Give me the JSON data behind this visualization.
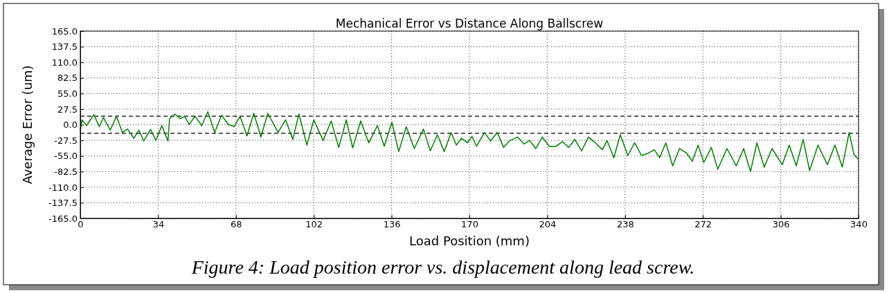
{
  "chart_data": {
    "type": "line",
    "title": "Mechanical Error vs Distance Along Ballscrew",
    "xlabel": "Load Position (mm)",
    "ylabel": "Average Error (um)",
    "annotations": [
      "Figure 4: Load position error vs. displacement along lead screw."
    ],
    "xlim": [
      0,
      340
    ],
    "xticks": [
      0,
      34,
      68,
      102,
      136,
      170,
      204,
      238,
      272,
      306,
      340
    ],
    "ylim": [
      -165,
      165
    ],
    "yticks": [
      {
        "value": -165,
        "label": "-165.0"
      },
      {
        "value": -137.5,
        "label": "-137.5"
      },
      {
        "value": -110,
        "label": "-110.0"
      },
      {
        "value": -82.5,
        "label": "-82.5"
      },
      {
        "value": -55,
        "label": "-55.0"
      },
      {
        "value": -27.5,
        "label": "-27.5"
      },
      {
        "value": 0,
        "label": "0.0"
      },
      {
        "value": 27.5,
        "label": "27.5"
      },
      {
        "value": 55,
        "label": "55.0"
      },
      {
        "value": 82.5,
        "label": "82.5"
      },
      {
        "value": 110,
        "label": "110.0"
      },
      {
        "value": 137.5,
        "label": "137.5"
      },
      {
        "value": 165,
        "label": "165.0"
      }
    ],
    "grid": true,
    "line_style": "solid",
    "ref_lines": [
      {
        "axis": "y",
        "value": 15,
        "color": "#000000",
        "line_style": "dashed"
      },
      {
        "axis": "y",
        "value": -15,
        "color": "#000000",
        "line_style": "dashed"
      }
    ],
    "series": [
      {
        "color": "#007f00",
        "x": [
          0,
          0.7,
          2.7,
          5.9,
          8.3,
          10.1,
          13.1,
          15.8,
          18.4,
          20.6,
          23.4,
          25.6,
          27.7,
          30.7,
          33,
          35.6,
          38.3,
          39,
          41.3,
          43.6,
          45.6,
          47.6,
          50.1,
          53.1,
          55.7,
          58.7,
          61.7,
          64.7,
          67.2,
          69.8,
          72.8,
          75.8,
          78.9,
          81.9,
          86.4,
          89.7,
          92.8,
          95.5,
          99,
          102,
          106.1,
          109.6,
          112.9,
          116.2,
          119,
          122.5,
          126,
          129.8,
          132.8,
          136.1,
          139.1,
          142.4,
          145.9,
          149.9,
          152.9,
          156,
          159,
          162,
          164.3,
          166.6,
          169.1,
          171.1,
          173.1,
          176.6,
          179.2,
          182.2,
          184.9,
          187.7,
          191,
          193.8,
          196.3,
          199,
          201.8,
          204.9,
          207.9,
          210.7,
          213.4,
          216,
          219,
          222,
          225,
          228.1,
          230.1,
          233.1,
          235.9,
          239.2,
          242.2,
          245.2,
          248.2,
          250.8,
          253.1,
          255.8,
          258.8,
          261.8,
          264.9,
          267.4,
          269.9,
          272.4,
          275.7,
          278.5,
          282.5,
          286.6,
          289.8,
          292.8,
          295.6,
          298.8,
          302.2,
          306.7,
          309.7,
          312.8,
          315.8,
          318.6,
          322.3,
          326.4,
          329.7,
          332.9,
          335.9,
          338,
          339.7
        ],
        "values": [
          -11.6,
          8.7,
          -1.5,
          17.7,
          -3.4,
          12.8,
          -9.5,
          14.8,
          -13.6,
          -7.5,
          -23.7,
          -9.5,
          -28.6,
          -8.3,
          -27.8,
          -1.5,
          -28.6,
          10.7,
          18.9,
          10.7,
          14.8,
          0.6,
          14.8,
          -1.5,
          22.9,
          -13.6,
          16.8,
          0.6,
          -3.4,
          14.8,
          -19.7,
          20.1,
          -21.7,
          20.1,
          -13.6,
          8.7,
          -25.8,
          18.9,
          -35.9,
          8.7,
          -27.8,
          6.7,
          -40,
          8.7,
          -40.8,
          6.7,
          -31.9,
          -1.5,
          -38,
          4.6,
          -47.3,
          -3.4,
          -42,
          -7.5,
          -46,
          -17.7,
          -47.3,
          -13.6,
          -35.9,
          -23.7,
          -31.9,
          -20.5,
          -38,
          -13.6,
          -28.6,
          -13.6,
          -40,
          -27.8,
          -21.7,
          -33.9,
          -27.8,
          -42,
          -21.7,
          -38,
          -38,
          -29.8,
          -40,
          -25.8,
          -46,
          -21.7,
          -31.9,
          -44,
          -27.8,
          -58.2,
          -17.7,
          -54.2,
          -31.9,
          -54.2,
          -50.2,
          -44,
          -58.2,
          -31.9,
          -72.5,
          -42,
          -50.2,
          -64.3,
          -35.9,
          -66.4,
          -40,
          -78.6,
          -42,
          -72.5,
          -42,
          -82.6,
          -31.9,
          -74.5,
          -42,
          -70.4,
          -35.9,
          -72.5,
          -25.8,
          -80.6,
          -35.9,
          -70.4,
          -35.9,
          -74.5,
          -13.6,
          -52.1,
          -60.3
        ]
      }
    ]
  }
}
